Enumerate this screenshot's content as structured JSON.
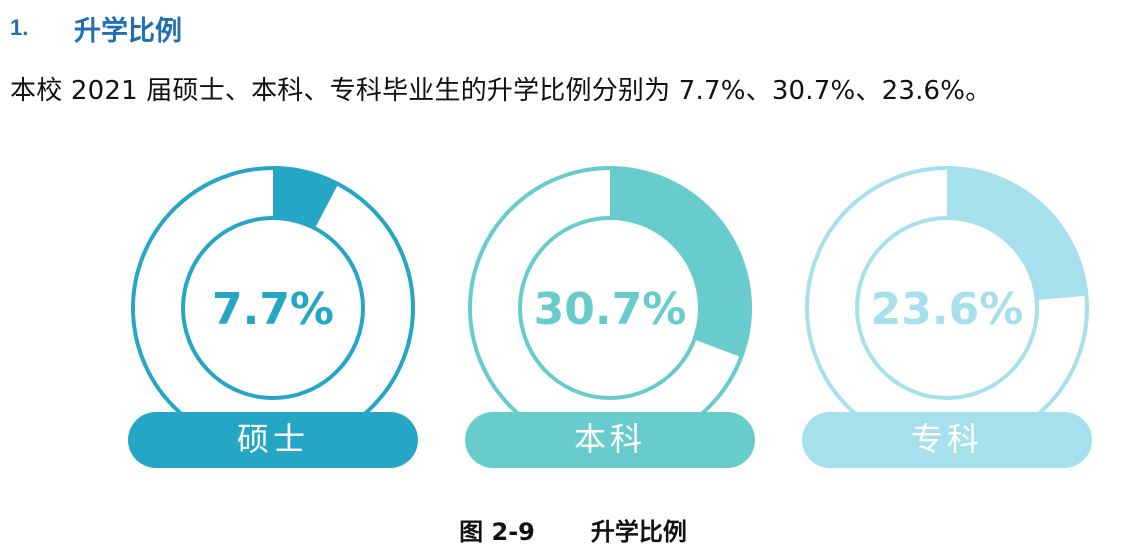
{
  "section": {
    "number": "1.",
    "title": "升学比例"
  },
  "paragraph": "本校 2021 届硕士、本科、专科毕业生的升学比例分别为 7.7%、30.7%、23.6%。",
  "caption": {
    "figure": "图 2-9",
    "title": "升学比例"
  },
  "colors": {
    "heading": "#1f6fb2",
    "masters": "#26a6c5",
    "bachelor": "#68cccc",
    "junior": "#a6e0ed"
  },
  "chart_data": {
    "type": "donut",
    "categories": [
      "硕士",
      "本科",
      "专科"
    ],
    "values": [
      7.7,
      30.7,
      23.6
    ],
    "value_labels": [
      "7.7%",
      "30.7%",
      "23.6%"
    ],
    "unit": "%",
    "max": 100
  }
}
